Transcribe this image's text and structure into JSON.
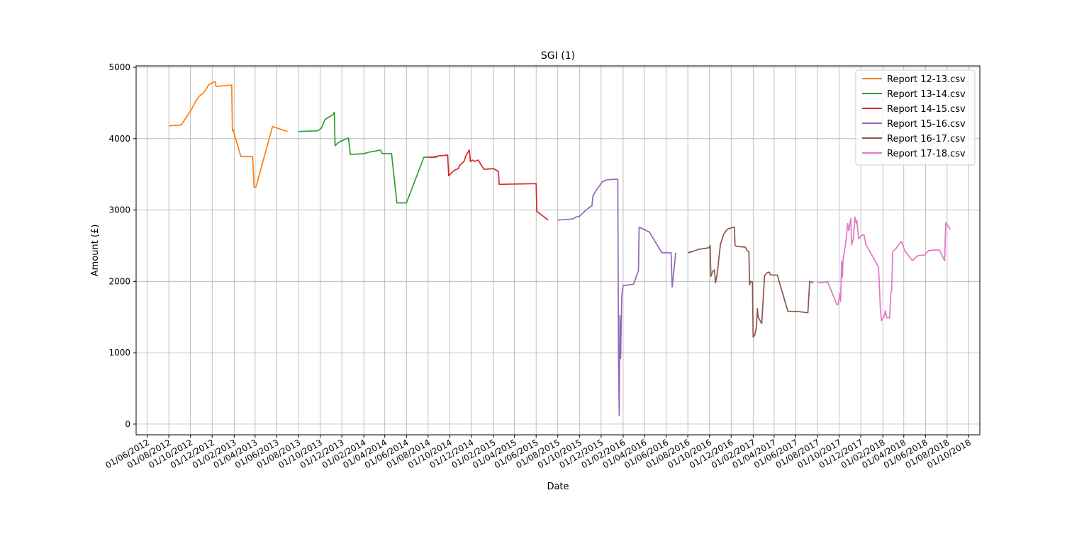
{
  "chart_data": {
    "type": "line",
    "title": "SGI (1)",
    "xlabel": "Date",
    "ylabel": "Amount (£)",
    "xlim": [
      "2012-05-01",
      "2018-11-01"
    ],
    "ylim": [
      -150,
      5020
    ],
    "grid": true,
    "legend_position": "top-right",
    "x_ticks": [
      "2012-06-01",
      "2012-08-01",
      "2012-10-01",
      "2012-12-01",
      "2013-02-01",
      "2013-04-01",
      "2013-06-01",
      "2013-08-01",
      "2013-10-01",
      "2013-12-01",
      "2014-02-01",
      "2014-04-01",
      "2014-06-01",
      "2014-08-01",
      "2014-10-01",
      "2014-12-01",
      "2015-02-01",
      "2015-04-01",
      "2015-06-01",
      "2015-08-01",
      "2015-10-01",
      "2015-12-01",
      "2016-02-01",
      "2016-04-01",
      "2016-06-01",
      "2016-08-01",
      "2016-10-01",
      "2016-12-01",
      "2017-02-01",
      "2017-04-01",
      "2017-06-01",
      "2017-08-01",
      "2017-10-01",
      "2017-12-01",
      "2018-02-01",
      "2018-04-01",
      "2018-06-01",
      "2018-08-01",
      "2018-10-01"
    ],
    "x_tick_labels": [
      "01/06/2012",
      "01/08/2012",
      "01/10/2012",
      "01/12/2012",
      "01/02/2013",
      "01/04/2013",
      "01/06/2013",
      "01/08/2013",
      "01/10/2013",
      "01/12/2013",
      "01/02/2014",
      "01/04/2014",
      "01/06/2014",
      "01/08/2014",
      "01/10/2014",
      "01/12/2014",
      "01/02/2015",
      "01/04/2015",
      "01/06/2015",
      "01/08/2015",
      "01/10/2015",
      "01/12/2015",
      "01/02/2016",
      "01/04/2016",
      "01/06/2016",
      "01/08/2016",
      "01/10/2016",
      "01/12/2016",
      "01/02/2017",
      "01/04/2017",
      "01/06/2017",
      "01/08/2017",
      "01/10/2017",
      "01/12/2017",
      "01/02/2018",
      "01/04/2018",
      "01/06/2018",
      "01/08/2018",
      "01/10/2018"
    ],
    "y_ticks": [
      0,
      1000,
      2000,
      3000,
      4000,
      5000
    ],
    "series": [
      {
        "name": "Report 12-13.csv",
        "color": "#ff7f0e",
        "points": [
          [
            "2012-08-01",
            4180
          ],
          [
            "2012-09-05",
            4190
          ],
          [
            "2012-10-05",
            4420
          ],
          [
            "2012-10-15",
            4520
          ],
          [
            "2012-10-25",
            4590
          ],
          [
            "2012-11-01",
            4620
          ],
          [
            "2012-11-05",
            4630
          ],
          [
            "2012-11-15",
            4700
          ],
          [
            "2012-11-22",
            4760
          ],
          [
            "2012-12-05",
            4790
          ],
          [
            "2012-12-10",
            4800
          ],
          [
            "2012-12-12",
            4730
          ],
          [
            "2013-01-20",
            4750
          ],
          [
            "2013-01-25",
            4750
          ],
          [
            "2013-01-27",
            4110
          ],
          [
            "2013-01-29",
            4130
          ],
          [
            "2013-02-01",
            4070
          ],
          [
            "2013-02-20",
            3750
          ],
          [
            "2013-03-15",
            3750
          ],
          [
            "2013-03-25",
            3750
          ],
          [
            "2013-03-29",
            3320
          ],
          [
            "2013-04-03",
            3320
          ],
          [
            "2013-05-20",
            4170
          ],
          [
            "2013-07-01",
            4100
          ]
        ]
      },
      {
        "name": "Report 13-14.csv",
        "color": "#2ca02c",
        "points": [
          [
            "2013-08-01",
            4100
          ],
          [
            "2013-09-25",
            4110
          ],
          [
            "2013-10-05",
            4150
          ],
          [
            "2013-10-12",
            4240
          ],
          [
            "2013-10-15",
            4270
          ],
          [
            "2013-10-28",
            4310
          ],
          [
            "2013-11-05",
            4330
          ],
          [
            "2013-11-10",
            4370
          ],
          [
            "2013-11-12",
            3900
          ],
          [
            "2013-11-20",
            3940
          ],
          [
            "2013-12-01",
            3970
          ],
          [
            "2013-12-15",
            4000
          ],
          [
            "2013-12-20",
            4010
          ],
          [
            "2013-12-25",
            3780
          ],
          [
            "2014-02-01",
            3790
          ],
          [
            "2014-02-15",
            3810
          ],
          [
            "2014-03-20",
            3840
          ],
          [
            "2014-03-25",
            3790
          ],
          [
            "2014-04-20",
            3790
          ],
          [
            "2014-05-05",
            3100
          ],
          [
            "2014-06-01",
            3100
          ],
          [
            "2014-07-20",
            3740
          ],
          [
            "2014-08-15",
            3740
          ],
          [
            "2014-08-25",
            3740
          ]
        ]
      },
      {
        "name": "Report 14-15.csv",
        "color": "#d62728",
        "points": [
          [
            "2014-08-01",
            3740
          ],
          [
            "2014-08-15",
            3740
          ],
          [
            "2014-09-01",
            3760
          ],
          [
            "2014-09-25",
            3770
          ],
          [
            "2014-09-28",
            3480
          ],
          [
            "2014-10-08",
            3530
          ],
          [
            "2014-10-15",
            3560
          ],
          [
            "2014-10-25",
            3580
          ],
          [
            "2014-10-28",
            3620
          ],
          [
            "2014-11-05",
            3660
          ],
          [
            "2014-11-10",
            3680
          ],
          [
            "2014-11-15",
            3760
          ],
          [
            "2014-11-20",
            3800
          ],
          [
            "2014-11-25",
            3840
          ],
          [
            "2014-11-28",
            3680
          ],
          [
            "2014-12-05",
            3700
          ],
          [
            "2014-12-10",
            3680
          ],
          [
            "2014-12-20",
            3700
          ],
          [
            "2015-01-05",
            3570
          ],
          [
            "2015-02-01",
            3580
          ],
          [
            "2015-02-15",
            3540
          ],
          [
            "2015-02-17",
            3360
          ],
          [
            "2015-06-01",
            3370
          ],
          [
            "2015-06-03",
            2980
          ],
          [
            "2015-07-05",
            2860
          ]
        ]
      },
      {
        "name": "Report 15-16.csv",
        "color": "#9467bd",
        "points": [
          [
            "2015-08-01",
            2860
          ],
          [
            "2015-09-01",
            2870
          ],
          [
            "2015-09-15",
            2880
          ],
          [
            "2015-09-20",
            2900
          ],
          [
            "2015-10-01",
            2910
          ],
          [
            "2015-10-15",
            2980
          ],
          [
            "2015-10-25",
            3020
          ],
          [
            "2015-10-30",
            3040
          ],
          [
            "2015-11-05",
            3060
          ],
          [
            "2015-11-08",
            3200
          ],
          [
            "2015-11-15",
            3260
          ],
          [
            "2015-11-25",
            3330
          ],
          [
            "2015-12-03",
            3390
          ],
          [
            "2015-12-15",
            3420
          ],
          [
            "2016-01-05",
            3430
          ],
          [
            "2016-01-17",
            3430
          ],
          [
            "2016-01-19",
            860
          ],
          [
            "2016-01-21",
            120
          ],
          [
            "2016-01-23",
            1520
          ],
          [
            "2016-01-25",
            920
          ],
          [
            "2016-01-28",
            1800
          ],
          [
            "2016-02-01",
            1940
          ],
          [
            "2016-03-01",
            1960
          ],
          [
            "2016-03-15",
            2150
          ],
          [
            "2016-03-17",
            2760
          ],
          [
            "2016-04-15",
            2690
          ],
          [
            "2016-05-20",
            2400
          ],
          [
            "2016-06-15",
            2400
          ],
          [
            "2016-06-18",
            1920
          ],
          [
            "2016-06-28",
            2400
          ]
        ]
      },
      {
        "name": "Report 16-17.csv",
        "color": "#8c564b",
        "points": [
          [
            "2016-08-01",
            2400
          ],
          [
            "2016-08-15",
            2420
          ],
          [
            "2016-09-01",
            2450
          ],
          [
            "2016-09-15",
            2460
          ],
          [
            "2016-09-28",
            2470
          ],
          [
            "2016-10-01",
            2480
          ],
          [
            "2016-10-03",
            2500
          ],
          [
            "2016-10-05",
            2070
          ],
          [
            "2016-10-10",
            2140
          ],
          [
            "2016-10-15",
            2160
          ],
          [
            "2016-10-18",
            1980
          ],
          [
            "2016-10-22",
            2080
          ],
          [
            "2016-10-24",
            2150
          ],
          [
            "2016-10-28",
            2350
          ],
          [
            "2016-11-01",
            2520
          ],
          [
            "2016-11-05",
            2580
          ],
          [
            "2016-11-10",
            2660
          ],
          [
            "2016-11-20",
            2730
          ],
          [
            "2016-12-01",
            2750
          ],
          [
            "2016-12-10",
            2760
          ],
          [
            "2016-12-12",
            2500
          ],
          [
            "2016-12-20",
            2490
          ],
          [
            "2017-01-10",
            2480
          ],
          [
            "2017-01-15",
            2430
          ],
          [
            "2017-01-20",
            2420
          ],
          [
            "2017-01-22",
            1950
          ],
          [
            "2017-01-25",
            2000
          ],
          [
            "2017-01-30",
            1990
          ],
          [
            "2017-02-01",
            1220
          ],
          [
            "2017-02-05",
            1240
          ],
          [
            "2017-02-10",
            1350
          ],
          [
            "2017-02-13",
            1620
          ],
          [
            "2017-02-15",
            1500
          ],
          [
            "2017-02-25",
            1410
          ],
          [
            "2017-03-05",
            2080
          ],
          [
            "2017-03-12",
            2120
          ],
          [
            "2017-03-18",
            2130
          ],
          [
            "2017-03-22",
            2090
          ],
          [
            "2017-04-10",
            2090
          ],
          [
            "2017-04-15",
            2000
          ],
          [
            "2017-05-10",
            1580
          ],
          [
            "2017-06-05",
            1580
          ],
          [
            "2017-07-05",
            1560
          ],
          [
            "2017-07-10",
            2000
          ],
          [
            "2017-07-20",
            1980
          ]
        ]
      },
      {
        "name": "Report 17-18.csv",
        "color": "#e377c2",
        "points": [
          [
            "2017-08-01",
            1980
          ],
          [
            "2017-08-30",
            1990
          ],
          [
            "2017-09-25",
            1670
          ],
          [
            "2017-09-28",
            1680
          ],
          [
            "2017-10-03",
            1830
          ],
          [
            "2017-10-05",
            1720
          ],
          [
            "2017-10-08",
            2280
          ],
          [
            "2017-10-10",
            2060
          ],
          [
            "2017-10-12",
            2290
          ],
          [
            "2017-10-18",
            2490
          ],
          [
            "2017-10-22",
            2650
          ],
          [
            "2017-10-25",
            2810
          ],
          [
            "2017-10-28",
            2710
          ],
          [
            "2017-11-03",
            2880
          ],
          [
            "2017-11-05",
            2510
          ],
          [
            "2017-11-10",
            2600
          ],
          [
            "2017-11-15",
            2900
          ],
          [
            "2017-11-18",
            2820
          ],
          [
            "2017-11-20",
            2850
          ],
          [
            "2017-11-25",
            2600
          ],
          [
            "2017-12-05",
            2650
          ],
          [
            "2017-12-10",
            2650
          ],
          [
            "2017-12-15",
            2520
          ],
          [
            "2018-01-20",
            2200
          ],
          [
            "2018-01-25",
            1620
          ],
          [
            "2018-01-28",
            1450
          ],
          [
            "2018-02-05",
            1510
          ],
          [
            "2018-02-08",
            1590
          ],
          [
            "2018-02-12",
            1490
          ],
          [
            "2018-02-20",
            1490
          ],
          [
            "2018-02-24",
            1850
          ],
          [
            "2018-02-26",
            1870
          ],
          [
            "2018-03-01",
            2420
          ],
          [
            "2018-03-10",
            2460
          ],
          [
            "2018-03-20",
            2530
          ],
          [
            "2018-03-25",
            2560
          ],
          [
            "2018-04-05",
            2420
          ],
          [
            "2018-04-25",
            2290
          ],
          [
            "2018-05-10",
            2360
          ],
          [
            "2018-05-30",
            2370
          ],
          [
            "2018-06-10",
            2430
          ],
          [
            "2018-06-25",
            2440
          ],
          [
            "2018-07-10",
            2440
          ],
          [
            "2018-07-25",
            2290
          ],
          [
            "2018-07-28",
            2820
          ],
          [
            "2018-08-10",
            2730
          ]
        ]
      }
    ]
  }
}
